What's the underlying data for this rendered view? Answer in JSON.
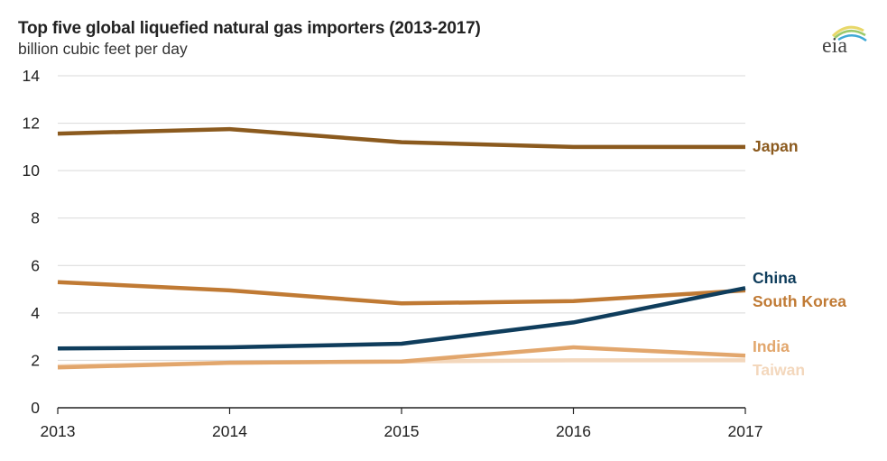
{
  "header": {
    "title": "Top five global liquefied natural gas importers (2013-2017)",
    "subtitle": "billion cubic feet per day",
    "logo_text": "eia"
  },
  "chart_data": {
    "type": "line",
    "title": "Top five global liquefied natural gas importers (2013-2017)",
    "ylabel": "billion cubic feet per day",
    "xlabel": "",
    "x": [
      "2013",
      "2014",
      "2015",
      "2016",
      "2017"
    ],
    "ylim": [
      0,
      14
    ],
    "yticks": [
      "0",
      "2",
      "4",
      "6",
      "8",
      "10",
      "12",
      "14"
    ],
    "grid": true,
    "legend": "direct labels at right end of lines",
    "series": [
      {
        "name": "Japan",
        "color": "#8B5A1E",
        "values": [
          11.56,
          11.75,
          11.2,
          11.0,
          11.0
        ]
      },
      {
        "name": "China",
        "color": "#0F3D5C",
        "values": [
          2.5,
          2.55,
          2.7,
          3.6,
          5.05
        ]
      },
      {
        "name": "South Korea",
        "color": "#C07A34",
        "values": [
          5.3,
          4.95,
          4.4,
          4.5,
          4.95
        ]
      },
      {
        "name": "India",
        "color": "#E2A66C",
        "values": [
          1.7,
          1.9,
          1.95,
          2.55,
          2.2
        ]
      },
      {
        "name": "Taiwan",
        "color": "#F3D7BC",
        "values": [
          1.75,
          1.9,
          1.95,
          2.0,
          2.0
        ]
      }
    ]
  }
}
